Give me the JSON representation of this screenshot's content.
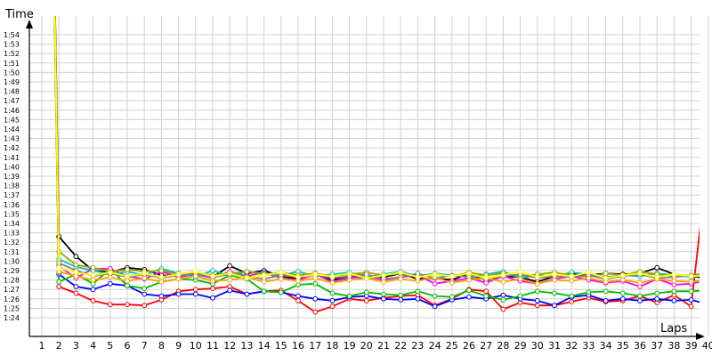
{
  "chart_data": {
    "type": "line",
    "xlabel": "Laps",
    "ylabel": "Time",
    "x": [
      1,
      2,
      3,
      4,
      5,
      6,
      7,
      8,
      9,
      10,
      11,
      12,
      13,
      14,
      15,
      16,
      17,
      18,
      19,
      20,
      21,
      22,
      23,
      24,
      25,
      26,
      27,
      28,
      29,
      30,
      31,
      32,
      33,
      34,
      35,
      36,
      37,
      38,
      39,
      40
    ],
    "y_ticks": [
      "1:24",
      "1:25",
      "1:26",
      "1:27",
      "1:28",
      "1:29",
      "1:30",
      "1:31",
      "1:32",
      "1:33",
      "1:34",
      "1:35",
      "1:36",
      "1:37",
      "1:38",
      "1:39",
      "1:40",
      "1:41",
      "1:42",
      "1:43",
      "1:44",
      "1:45",
      "1:46",
      "1:47",
      "1:48",
      "1:49",
      "1:50",
      "1:51",
      "1:52",
      "1:53",
      "1:54"
    ],
    "ylim_seconds": [
      84,
      96
    ],
    "grid": true,
    "legend": "none",
    "series": [
      {
        "color": "#ff0000",
        "values": [
          200,
          87.3,
          86.6,
          85.8,
          85.4,
          85.4,
          85.3,
          85.9,
          86.8,
          87.0,
          87.1,
          87.3,
          86.5,
          86.8,
          86.9,
          85.8,
          84.6,
          85.2,
          86.0,
          85.8,
          86.1,
          86.3,
          86.4,
          85.3,
          86.0,
          87.0,
          86.8,
          84.9,
          85.6,
          85.3,
          85.3,
          85.7,
          86.1,
          85.7,
          85.8,
          86.3,
          85.6,
          86.4,
          85.2,
          101.1
        ]
      },
      {
        "color": "#0000ff",
        "values": [
          200,
          88.6,
          87.3,
          87.0,
          87.6,
          87.4,
          86.5,
          86.3,
          86.5,
          86.5,
          86.1,
          86.9,
          86.5,
          86.8,
          86.7,
          86.3,
          86.0,
          85.8,
          86.2,
          86.3,
          86.0,
          85.9,
          86.0,
          85.2,
          85.9,
          86.2,
          86.0,
          86.4,
          86.0,
          85.8,
          85.3,
          86.2,
          86.4,
          85.8,
          86.0,
          85.8,
          86.0,
          85.8,
          85.9,
          85.4
        ]
      },
      {
        "color": "#000000",
        "values": [
          200,
          92.6,
          90.5,
          89.0,
          88.8,
          89.3,
          89.1,
          88.5,
          88.4,
          88.8,
          88.3,
          89.5,
          88.7,
          89.0,
          88.4,
          88.1,
          88.7,
          88.0,
          88.4,
          88.2,
          88.3,
          88.7,
          88.1,
          88.2,
          88.0,
          88.7,
          88.0,
          88.4,
          88.3,
          87.8,
          88.4,
          88.6,
          88.5,
          88.7,
          88.6,
          88.7,
          89.3,
          88.6,
          88.4,
          88.2
        ]
      },
      {
        "color": "#00bb00",
        "values": [
          200,
          87.8,
          88.6,
          87.6,
          89.2,
          87.4,
          87.1,
          87.8,
          88.1,
          88.0,
          87.6,
          88.5,
          88.1,
          86.8,
          86.7,
          87.5,
          87.6,
          86.6,
          86.3,
          86.7,
          86.5,
          86.4,
          86.8,
          86.3,
          86.2,
          86.9,
          86.3,
          85.9,
          86.3,
          86.8,
          86.6,
          86.3,
          86.7,
          86.8,
          86.6,
          86.3,
          86.6,
          86.8,
          86.8,
          86.9
        ]
      },
      {
        "color": "#ff00ff",
        "values": [
          200,
          89.5,
          88.2,
          89.2,
          89.2,
          88.4,
          88.1,
          88.9,
          88.3,
          88.6,
          88.2,
          88.9,
          88.4,
          88.8,
          88.2,
          88.0,
          88.6,
          87.8,
          88.2,
          88.4,
          88.0,
          88.3,
          88.5,
          87.6,
          87.9,
          88.2,
          87.7,
          88.4,
          87.9,
          87.6,
          88.1,
          88.4,
          88.0,
          87.7,
          87.9,
          87.3,
          88.1,
          87.5,
          87.6,
          88.0
        ]
      },
      {
        "color": "#00c0c0",
        "values": [
          200,
          90.2,
          89.4,
          89.0,
          88.6,
          88.9,
          88.5,
          89.2,
          88.7,
          88.3,
          89.0,
          88.4,
          88.9,
          88.7,
          88.5,
          88.9,
          88.4,
          88.6,
          88.8,
          88.3,
          88.6,
          88.9,
          88.4,
          88.7,
          88.5,
          88.3,
          88.6,
          88.9,
          88.2,
          88.5,
          88.4,
          88.8,
          88.6,
          88.3,
          88.5,
          88.4,
          88.7,
          88.5,
          88.3,
          88.6
        ]
      },
      {
        "color": "#a0a000",
        "values": [
          200,
          91.0,
          89.6,
          89.3,
          88.9,
          89.1,
          88.9,
          89.0,
          88.6,
          88.8,
          88.5,
          88.7,
          88.9,
          88.6,
          88.8,
          88.5,
          88.7,
          88.4,
          88.6,
          88.8,
          88.5,
          88.7,
          88.3,
          88.6,
          88.4,
          88.8,
          88.5,
          88.7,
          88.4,
          88.6,
          88.8,
          88.5,
          88.3,
          88.7,
          88.5,
          88.9,
          88.6,
          88.4,
          88.5,
          88.8
        ]
      },
      {
        "color": "#808080",
        "values": [
          200,
          89.8,
          89.0,
          88.4,
          88.7,
          88.3,
          88.6,
          88.2,
          88.5,
          88.7,
          88.3,
          88.6,
          88.4,
          88.1,
          88.5,
          88.3,
          88.6,
          88.2,
          88.4,
          88.6,
          88.1,
          88.3,
          88.7,
          88.2,
          88.5,
          88.3,
          88.1,
          88.4,
          88.6,
          88.2,
          88.4,
          88.3,
          88.5,
          88.1,
          88.4,
          88.6,
          88.2,
          88.3,
          88.5,
          88.4
        ]
      },
      {
        "color": "#ffa000",
        "values": [
          200,
          88.9,
          88.4,
          88.0,
          88.3,
          87.9,
          88.2,
          87.8,
          88.1,
          88.4,
          87.9,
          88.0,
          88.3,
          87.8,
          88.1,
          87.9,
          88.2,
          87.7,
          88.0,
          88.2,
          87.8,
          88.1,
          87.9,
          88.3,
          87.7,
          88.0,
          88.2,
          87.8,
          88.1,
          87.6,
          88.0,
          87.9,
          88.2,
          87.8,
          88.0,
          87.7,
          88.1,
          87.9,
          87.8,
          88.0
        ]
      },
      {
        "color": "#ffff00",
        "values": [
          200,
          89.3,
          88.8,
          88.5,
          88.8,
          88.4,
          88.7,
          88.3,
          88.6,
          88.9,
          88.4,
          88.7,
          88.2,
          88.5,
          88.8,
          88.3,
          88.6,
          88.4,
          88.7,
          88.2,
          88.5,
          88.8,
          88.3,
          88.6,
          88.4,
          88.7,
          88.2,
          88.5,
          88.9,
          88.3,
          88.6,
          88.4,
          88.8,
          88.2,
          88.5,
          88.7,
          88.3,
          88.6,
          88.4,
          88.5
        ]
      }
    ]
  }
}
